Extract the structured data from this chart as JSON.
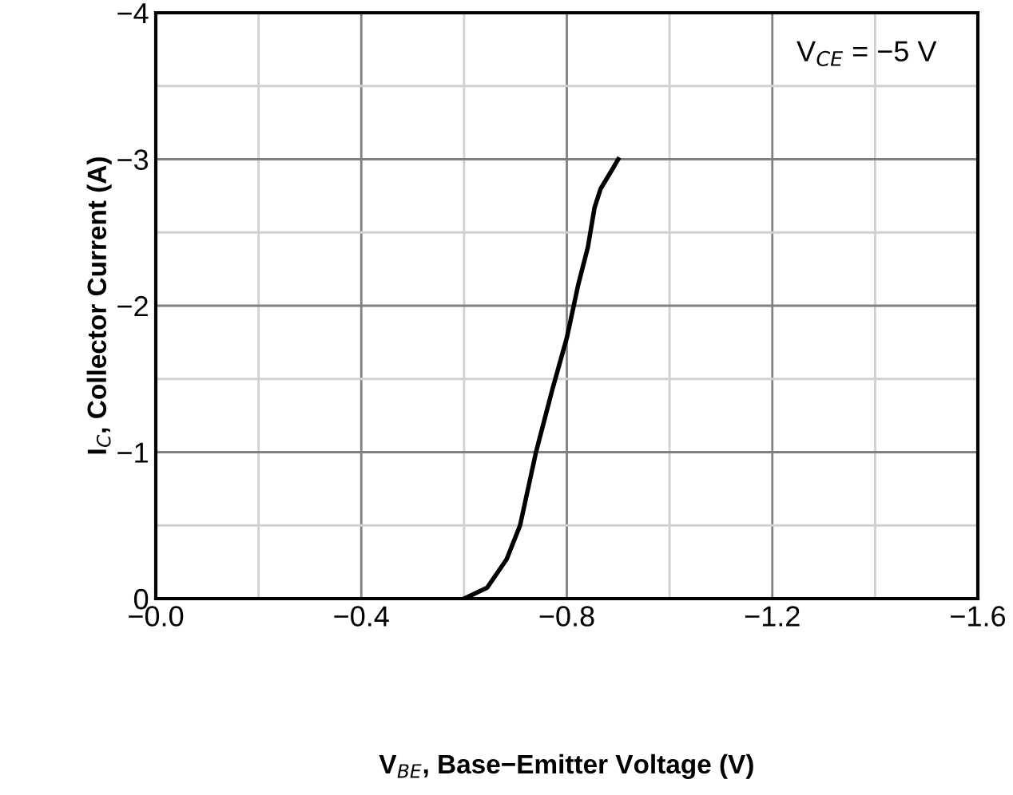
{
  "chart_data": {
    "type": "line",
    "xlabel": "V$_{BE}$, Base−Emitter Voltage (V)",
    "ylabel": "I$_{C}$, Collector Current (A)",
    "annotations": [
      "V$_{CE}$ = −5 V"
    ],
    "x": [
      -0.6,
      -0.645,
      -0.683,
      -0.709,
      -0.74,
      -0.772,
      -0.8,
      -0.822,
      -0.841,
      -0.854,
      -0.866,
      -0.885,
      -0.9
    ],
    "series": [
      {
        "color": "#000000",
        "values": [
          0,
          -0.075,
          -0.27,
          -0.5,
          -1.0,
          -1.43,
          -1.78,
          -2.14,
          -2.4,
          -2.67,
          -2.8,
          -2.91,
          -3.0
        ]
      }
    ],
    "xlim": [
      0,
      -1.6
    ],
    "ylim": [
      0,
      -4
    ],
    "xticks": [
      {
        "value": 0,
        "label": "−0.0"
      },
      {
        "value": -0.2,
        "label": null
      },
      {
        "value": -0.4,
        "label": "−0.4"
      },
      {
        "value": -0.6,
        "label": null
      },
      {
        "value": -0.8,
        "label": "−0.8"
      },
      {
        "value": -1.0,
        "label": null
      },
      {
        "value": -1.2,
        "label": "−1.2"
      },
      {
        "value": -1.4,
        "label": null
      },
      {
        "value": -1.6,
        "label": "−1.6"
      }
    ],
    "yticks": [
      {
        "value": 0,
        "label": "0"
      },
      {
        "value": -0.5,
        "label": null
      },
      {
        "value": -1,
        "label": "−1"
      },
      {
        "value": -1.5,
        "label": null
      },
      {
        "value": -2,
        "label": "−2"
      },
      {
        "value": -2.5,
        "label": null
      },
      {
        "value": -3,
        "label": "−3"
      },
      {
        "value": -3.5,
        "label": null
      },
      {
        "value": -4,
        "label": "−4"
      }
    ],
    "grid": true,
    "marker": "none",
    "line_style": "solid"
  }
}
